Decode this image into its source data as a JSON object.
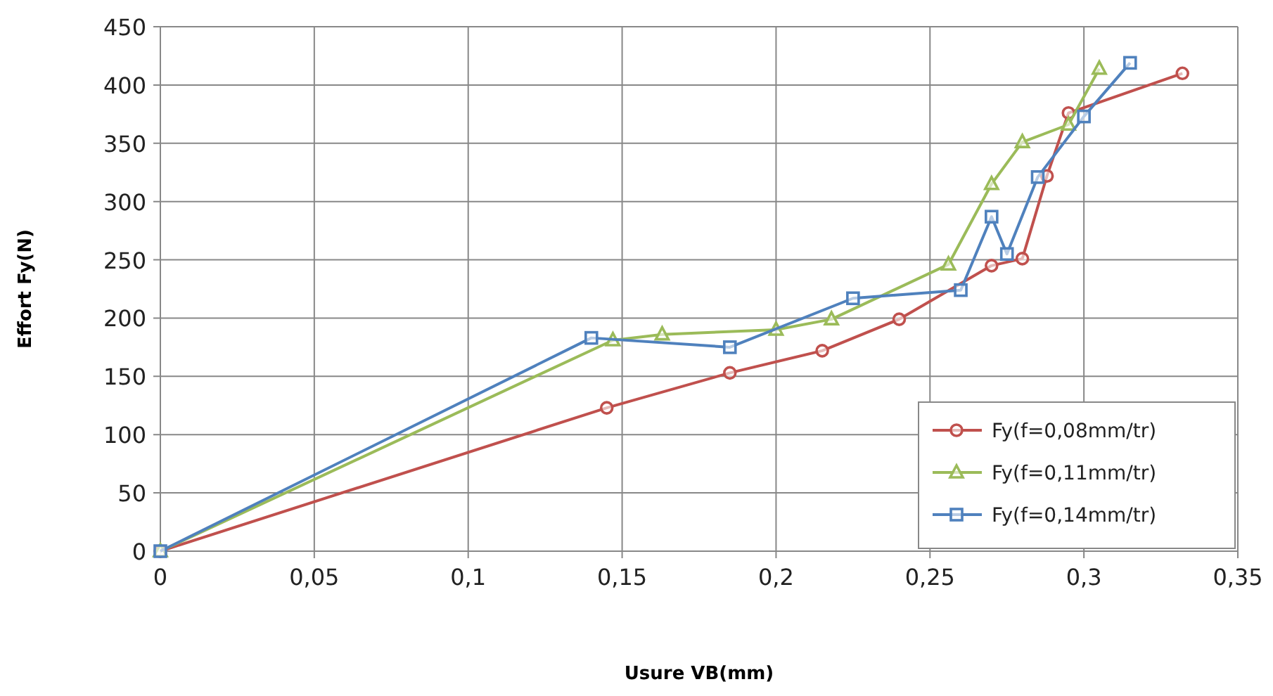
{
  "chart_data": {
    "type": "line",
    "xlabel": "Usure VB(mm)",
    "ylabel": "Effort Fy(N)",
    "xlim": [
      0,
      0.35
    ],
    "xticks": [
      0,
      {
        "value": 0.05,
        "label": "0,05"
      },
      {
        "value": 0.1,
        "label": "0,1"
      },
      {
        "value": 0.15,
        "label": "0,15"
      },
      {
        "value": 0.2,
        "label": "0,2"
      },
      {
        "value": 0.25,
        "label": "0,25"
      },
      {
        "value": 0.3,
        "label": "0,3"
      },
      {
        "value": 0.35,
        "label": "0,35"
      }
    ],
    "ylim": [
      0,
      450
    ],
    "yticks": [
      0,
      50,
      100,
      150,
      200,
      250,
      300,
      350,
      400,
      450
    ],
    "grid": true,
    "legend": "bottom right",
    "series": [
      {
        "name": "Fy(f=0,08mm/tr)",
        "color": "#c0504d",
        "marker": "circle",
        "x": [
          0,
          0.145,
          0.185,
          0.215,
          0.24,
          0.27,
          0.28,
          0.288,
          0.295,
          0.332
        ],
        "values": [
          0,
          123,
          153,
          172,
          199,
          245,
          251,
          322,
          376,
          410
        ]
      },
      {
        "name": "Fy(f=0,11mm/tr)",
        "color": "#9bbb59",
        "marker": "triangle",
        "x": [
          0,
          0.147,
          0.163,
          0.2,
          0.218,
          0.256,
          0.27,
          0.28,
          0.295,
          0.305
        ],
        "values": [
          0,
          181,
          186,
          190,
          199,
          246,
          315,
          351,
          366,
          414
        ]
      },
      {
        "name": "Fy(f=0,14mm/tr)",
        "color": "#4f81bd",
        "marker": "square",
        "x": [
          0,
          0.14,
          0.185,
          0.225,
          0.26,
          0.27,
          0.275,
          0.285,
          0.3,
          0.315
        ],
        "values": [
          0,
          183,
          175,
          217,
          224,
          287,
          255,
          321,
          373,
          419
        ]
      }
    ]
  }
}
